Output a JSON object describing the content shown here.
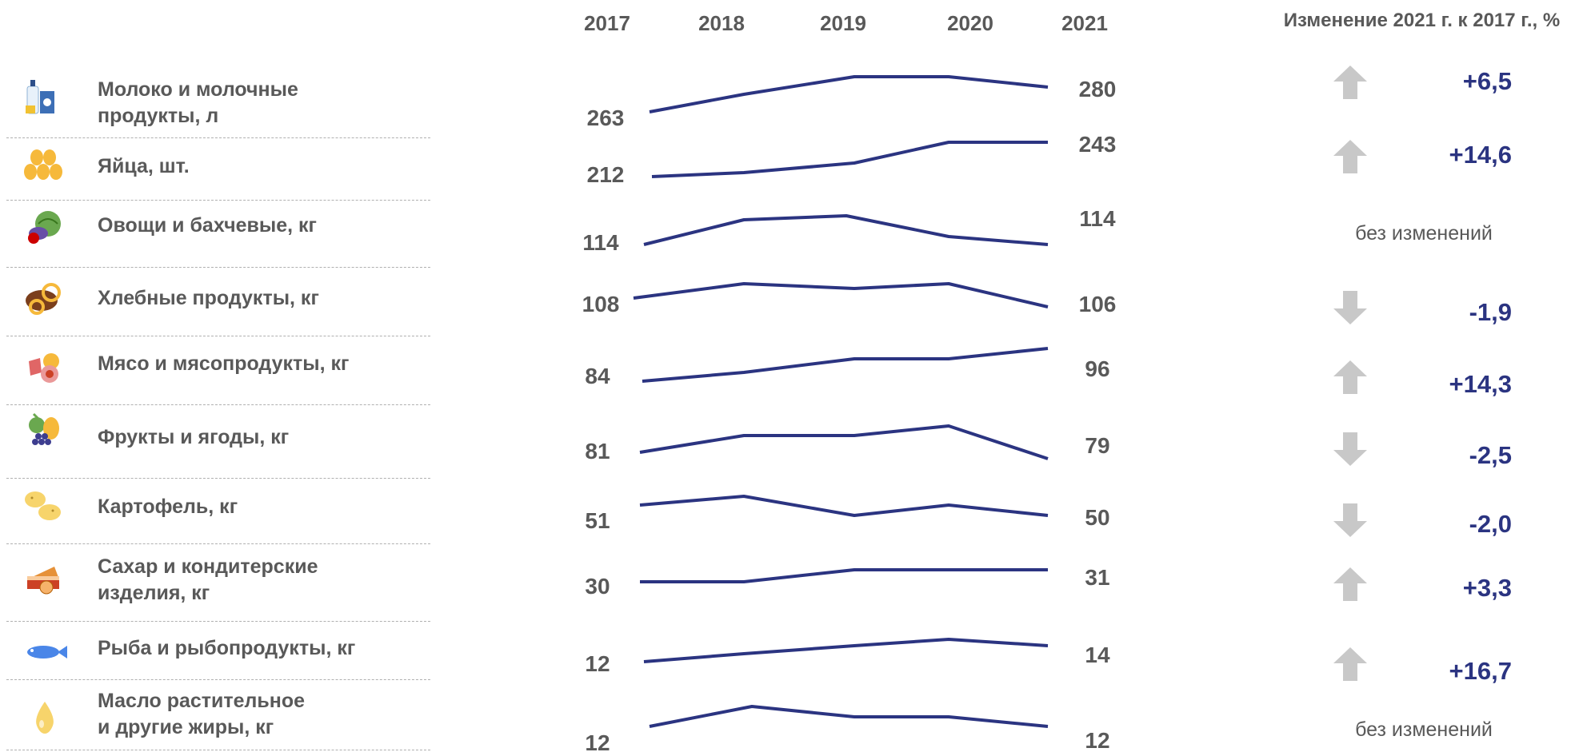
{
  "years": [
    "2017",
    "2018",
    "2019",
    "2020",
    "2021"
  ],
  "change_header": "Изменение 2021 г. к 2017 г., %",
  "colors": {
    "line": "#2b3481",
    "arrow": "#c8c8c8",
    "text": "#595959",
    "pct": "#2b3481"
  },
  "rows": [
    {
      "label": "Молоко и молочные\nпродукты, л",
      "icon": "milk-icon",
      "start": "263",
      "end": "280",
      "direction": "up",
      "change": "+6,5"
    },
    {
      "label": "Яйца, шт.",
      "icon": "eggs-icon",
      "start": "212",
      "end": "243",
      "direction": "up",
      "change": "+14,6"
    },
    {
      "label": "Овощи и бахчевые, кг",
      "icon": "vegetables-icon",
      "start": "114",
      "end": "114",
      "direction": "none",
      "change": "без изменений"
    },
    {
      "label": "Хлебные продукты, кг",
      "icon": "bread-icon",
      "start": "108",
      "end": "106",
      "direction": "down",
      "change": "-1,9"
    },
    {
      "label": "Мясо и мясопродукты, кг",
      "icon": "meat-icon",
      "start": "84",
      "end": "96",
      "direction": "up",
      "change": "+14,3"
    },
    {
      "label": "Фрукты и  ягоды, кг",
      "icon": "fruits-icon",
      "start": "81",
      "end": "79",
      "direction": "down",
      "change": "-2,5"
    },
    {
      "label": "Картофель, кг",
      "icon": "potato-icon",
      "start": "51",
      "end": "50",
      "direction": "down",
      "change": "-2,0"
    },
    {
      "label": "Сахар и кондитерские\nизделия, кг",
      "icon": "cake-icon",
      "start": "30",
      "end": "31",
      "direction": "up",
      "change": "+3,3"
    },
    {
      "label": "Рыба и рыбопродукты, кг",
      "icon": "fish-icon",
      "start": "12",
      "end": "14",
      "direction": "up",
      "change": "+16,7"
    },
    {
      "label": "Масло растительное\nи другие жиры, кг",
      "icon": "oil-drop-icon",
      "start": "12",
      "end": "12",
      "direction": "none",
      "change": "без изменений"
    }
  ],
  "chart_data": {
    "type": "line",
    "x": [
      "2017",
      "2018",
      "2019",
      "2020",
      "2021"
    ],
    "series": [
      {
        "name": "Молоко и молочные продукты, л",
        "values": [
          263,
          271,
          280,
          280,
          280
        ]
      },
      {
        "name": "Яйца, шт.",
        "values": [
          212,
          214,
          220,
          243,
          243
        ]
      },
      {
        "name": "Овощи и бахчевые, кг",
        "values": [
          114,
          125,
          126,
          117,
          114
        ]
      },
      {
        "name": "Хлебные продукты, кг",
        "values": [
          108,
          111,
          110,
          111,
          106
        ]
      },
      {
        "name": "Мясо и мясопродукты, кг",
        "values": [
          84,
          87,
          92,
          92,
          96
        ]
      },
      {
        "name": "Фрукты и  ягоды, кг",
        "values": [
          81,
          86,
          86,
          88,
          79
        ]
      },
      {
        "name": "Картофель, кг",
        "values": [
          51,
          53,
          48,
          51,
          50
        ]
      },
      {
        "name": "Сахар и кондитерские изделия, кг",
        "values": [
          30,
          30,
          31,
          31,
          31
        ]
      },
      {
        "name": "Рыба и рыбопродукты, кг",
        "values": [
          12,
          12.8,
          13.5,
          14,
          14
        ]
      },
      {
        "name": "Масло растительное и другие жиры, кг",
        "values": [
          12,
          13.5,
          12.8,
          12.8,
          12
        ]
      }
    ]
  }
}
